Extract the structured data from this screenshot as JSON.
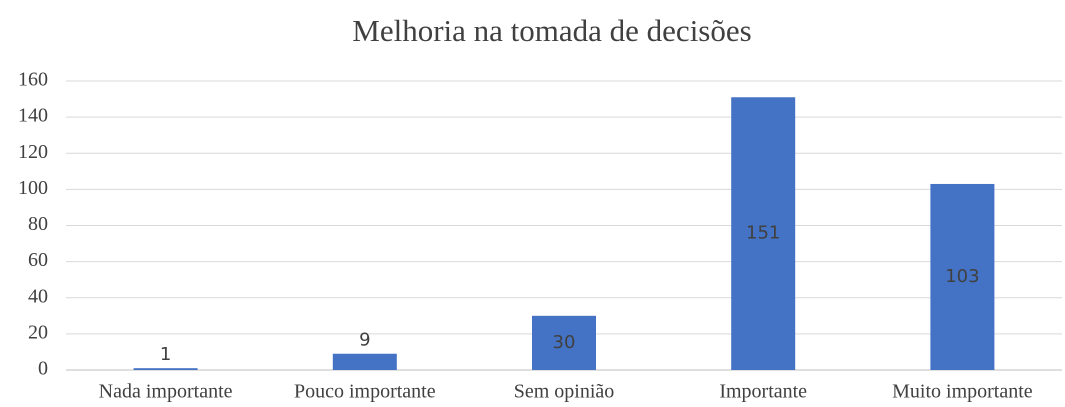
{
  "chart_data": {
    "type": "bar",
    "title": "Melhoria na tomada de decisões",
    "categories": [
      "Nada importante",
      "Pouco importante",
      "Sem opinião",
      "Importante",
      "Muito importante"
    ],
    "values": [
      1,
      9,
      30,
      151,
      103
    ],
    "color": "#4472c4",
    "ylim": [
      0,
      160
    ],
    "yticks": [
      0,
      20,
      40,
      60,
      80,
      100,
      120,
      140,
      160
    ],
    "grid": true
  }
}
